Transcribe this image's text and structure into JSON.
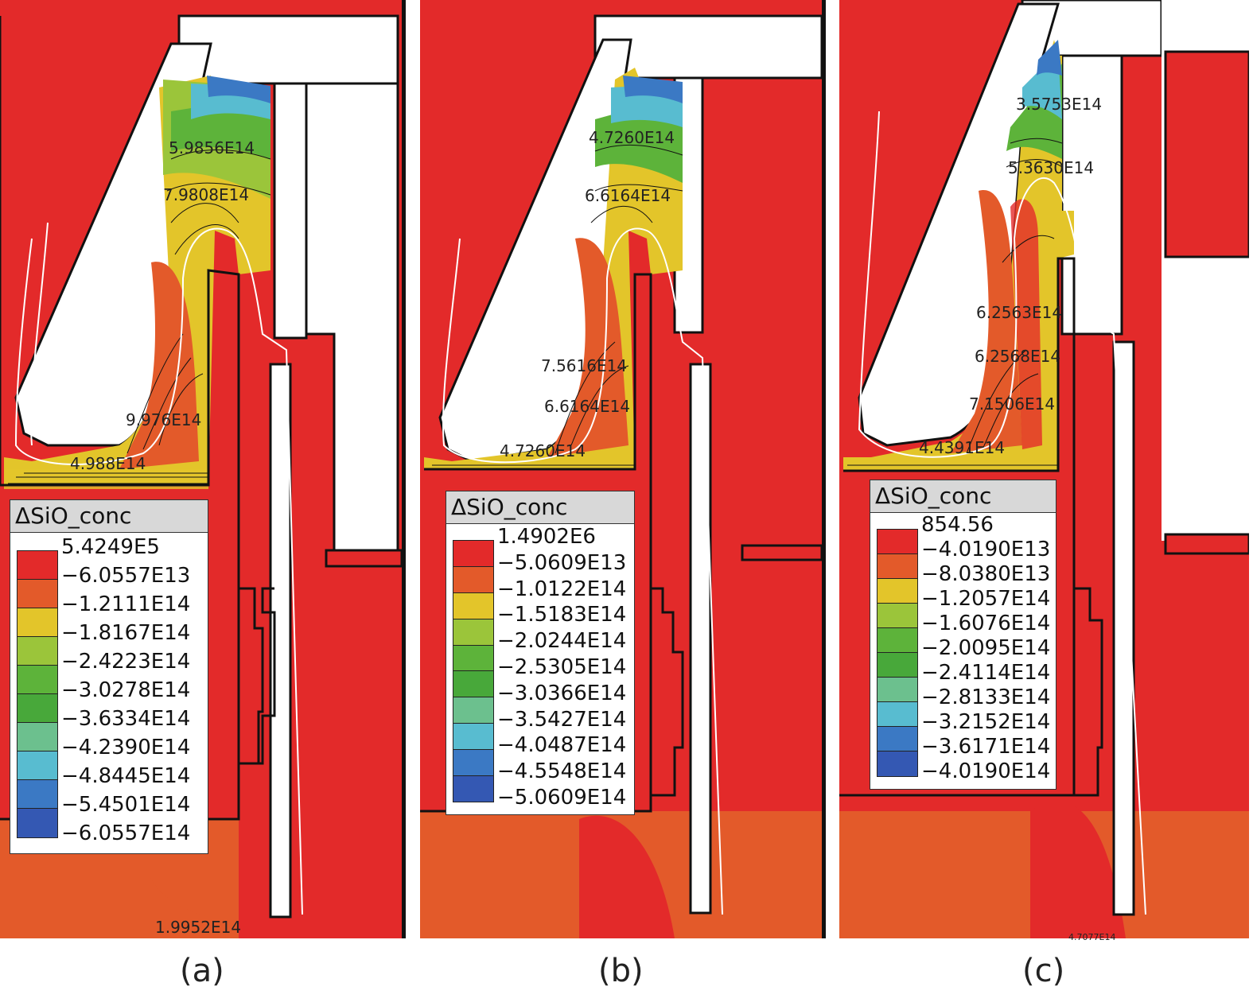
{
  "panels": [
    {
      "id": "a",
      "caption": "(a)",
      "legend": {
        "title": "ΔSiO_conc",
        "levels": [
          "5.4249E5",
          "−6.0557E13",
          "−1.2111E14",
          "−1.8167E14",
          "−2.4223E14",
          "−3.0278E14",
          "−3.6334E14",
          "−4.2390E14",
          "−4.8445E14",
          "−5.4501E14",
          "−6.0557E14"
        ]
      },
      "contour_labels": [
        "5.9856E14",
        "7.9808E14",
        "9.976E14",
        "4.988E14",
        "1.9952E14"
      ]
    },
    {
      "id": "b",
      "caption": "(b)",
      "legend": {
        "title": "ΔSiO_conc",
        "levels": [
          "1.4902E6",
          "−5.0609E13",
          "−1.0122E14",
          "−1.5183E14",
          "−2.0244E14",
          "−2.5305E14",
          "−3.0366E14",
          "−3.5427E14",
          "−4.0487E14",
          "−4.5548E14",
          "−5.0609E14"
        ]
      },
      "contour_labels": [
        "4.7260E14",
        "6.6164E14",
        "7.5616E14",
        "6.6164E14",
        "4.7260E14"
      ]
    },
    {
      "id": "c",
      "caption": "(c)",
      "legend": {
        "title": "ΔSiO_conc",
        "levels": [
          "854.56",
          "−4.0190E13",
          "−8.0380E13",
          "−1.2057E14",
          "−1.6076E14",
          "−2.0095E14",
          "−2.4114E14",
          "−2.8133E14",
          "−3.2152E14",
          "−3.6171E14",
          "−4.0190E14"
        ]
      },
      "contour_labels": [
        "3.5753E14",
        "5.3630E14",
        "6.2563E14",
        "6.2568E14",
        "7.1506E14",
        "4.4391E14",
        "4.7077E14"
      ]
    }
  ],
  "colors": {
    "scale": [
      "#e32a2a",
      "#e35a2a",
      "#e3c52a",
      "#9bc53a",
      "#5db33a",
      "#48a83a",
      "#6cc08e",
      "#58bcd0",
      "#3b79c4",
      "#3458b3"
    ],
    "background": "#e32a2a",
    "lower_region": "#e35a2a"
  }
}
